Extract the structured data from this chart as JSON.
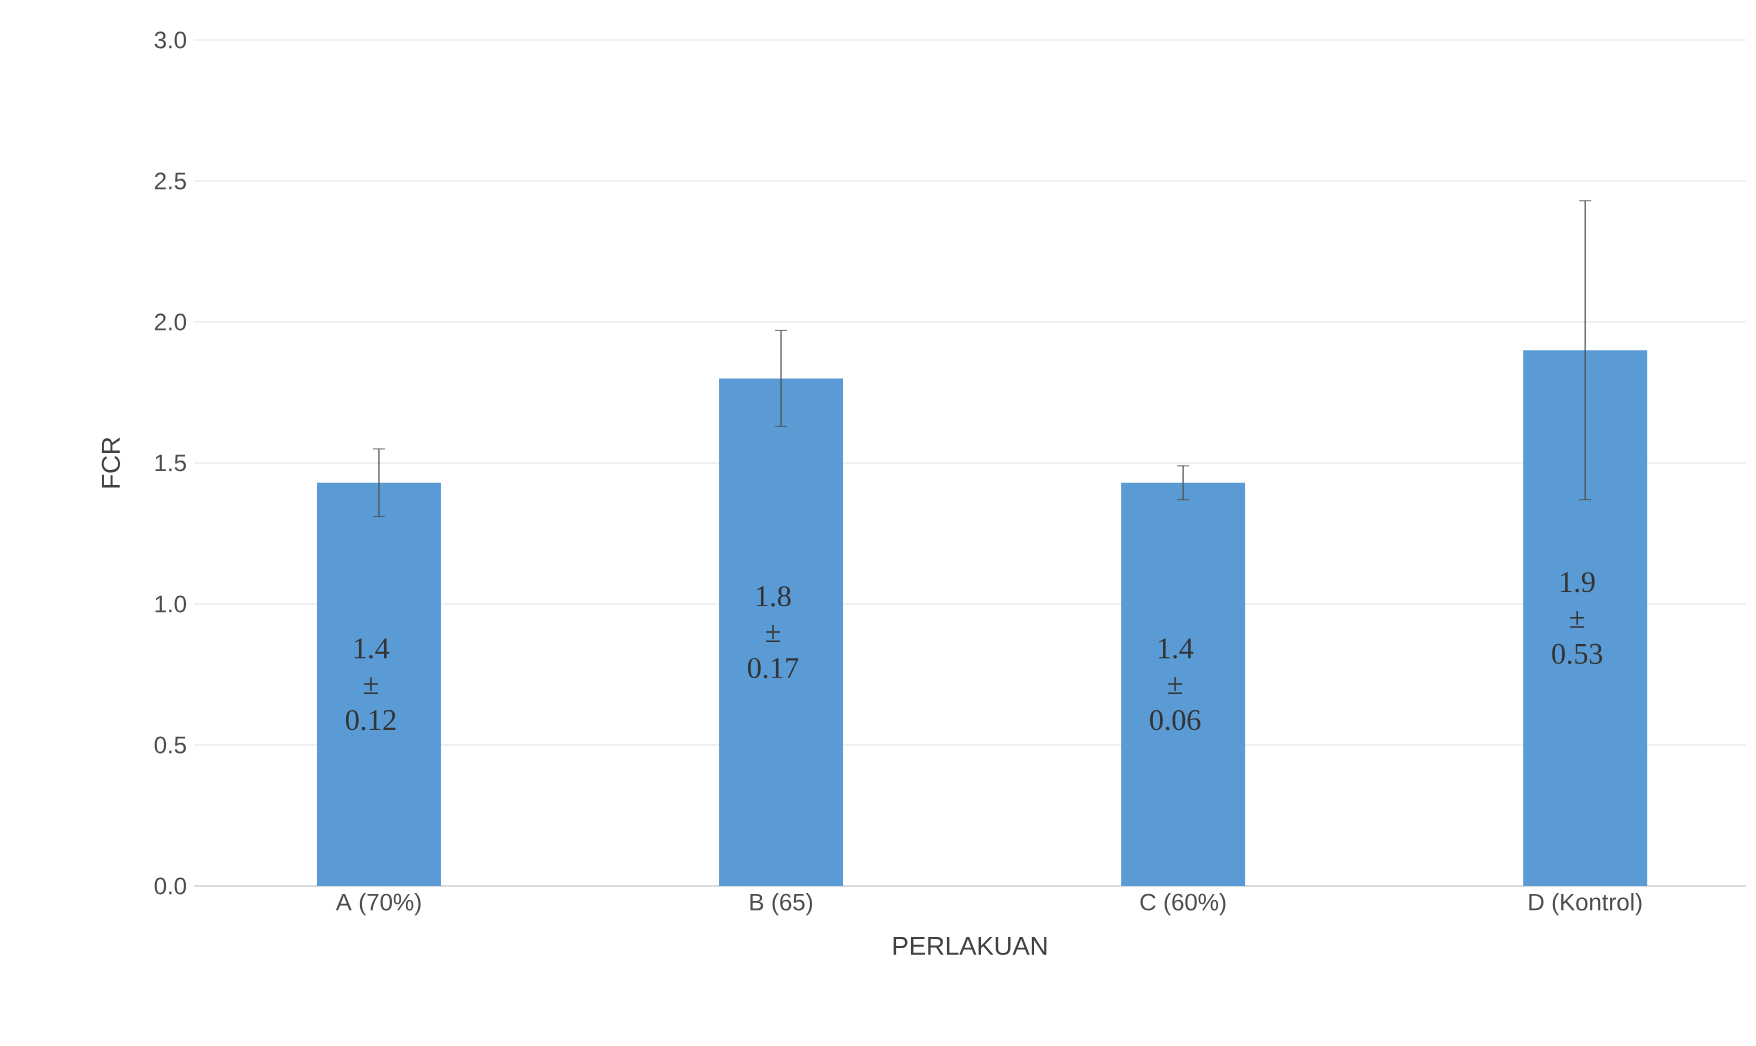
{
  "chart_data": {
    "type": "bar",
    "xlabel": "PERLAKUAN",
    "ylabel": "FCR",
    "categories": [
      "A (70%)",
      "B (65)",
      "C (60%)",
      "D (Kontrol)"
    ],
    "values": [
      1.43,
      1.8,
      1.43,
      1.9
    ],
    "errors": [
      0.12,
      0.17,
      0.06,
      0.53
    ],
    "value_labels": [
      "1.4 ± 0.12",
      "1.8 ± 0.17",
      "1.4 ± 0.06",
      "1.9 ± 0.53"
    ],
    "color": "#5b9bd5",
    "ylim": [
      0,
      3
    ],
    "yticks": [
      {
        "value": 0,
        "label": "0.0"
      },
      {
        "value": 0.5,
        "label": "0.5"
      },
      {
        "value": 1,
        "label": "1.0"
      },
      {
        "value": 1.5,
        "label": "1.5"
      },
      {
        "value": 2,
        "label": "2.0"
      },
      {
        "value": 2.5,
        "label": "2.5"
      },
      {
        "value": 3,
        "label": "3.0"
      }
    ],
    "grid": "y"
  }
}
